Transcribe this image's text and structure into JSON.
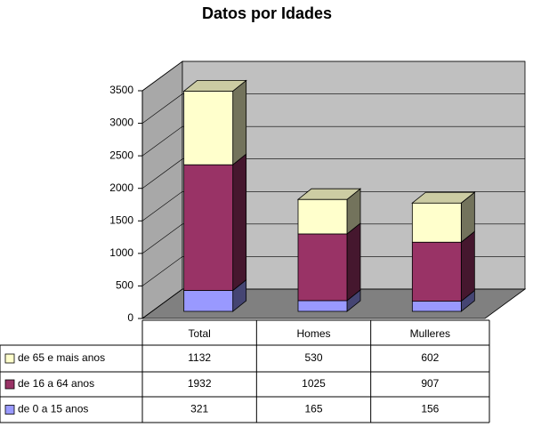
{
  "chart_data": {
    "type": "bar3d_stacked",
    "title": "Datos por Idades",
    "categories": [
      "Total",
      "Homes",
      "Mulleres"
    ],
    "series": [
      {
        "name": "de 0 a 15 anos",
        "color": "#9999ff",
        "values": [
          321,
          165,
          156
        ]
      },
      {
        "name": "de 16 a 64 anos",
        "color": "#993366",
        "values": [
          1932,
          1025,
          907
        ]
      },
      {
        "name": "de 65 e mais anos",
        "color": "#ffffcc",
        "values": [
          1132,
          530,
          602
        ]
      }
    ],
    "ylim": [
      0,
      3500
    ],
    "yticks": [
      0,
      500,
      1000,
      1500,
      2000,
      2500,
      3000,
      3500
    ],
    "grid": true
  }
}
